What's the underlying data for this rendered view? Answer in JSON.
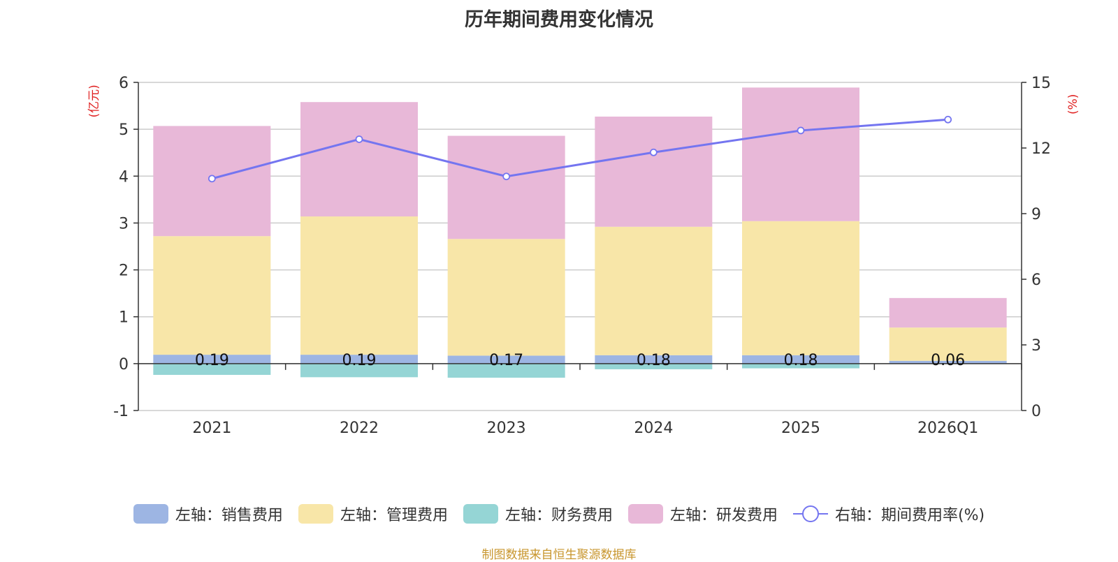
{
  "chart_data": {
    "type": "bar",
    "title": "历年期间费用变化情况",
    "categories": [
      "2021",
      "2022",
      "2023",
      "2024",
      "2025",
      "2026Q1"
    ],
    "left_axis": {
      "label": "(亿元)",
      "ylim": [
        -1,
        6
      ],
      "ticks": [
        -1,
        0,
        1,
        2,
        3,
        4,
        5,
        6
      ]
    },
    "right_axis": {
      "label": "(%)",
      "ylim": [
        0,
        15
      ],
      "ticks": [
        0,
        3,
        6,
        9,
        12,
        15
      ]
    },
    "series": [
      {
        "name": "左轴：销售费用",
        "axis": "left",
        "stack": "pos",
        "color": "#9db5e3",
        "values": [
          0.19,
          0.19,
          0.17,
          0.18,
          0.18,
          0.06
        ]
      },
      {
        "name": "左轴：管理费用",
        "axis": "left",
        "stack": "pos",
        "color": "#f8e6a8",
        "values": [
          2.53,
          2.95,
          2.49,
          2.74,
          2.86,
          0.71
        ]
      },
      {
        "name": "左轴：财务费用",
        "axis": "left",
        "stack": "neg",
        "color": "#95d5d5",
        "values": [
          -0.24,
          -0.29,
          -0.3,
          -0.12,
          -0.1,
          -0.01
        ]
      },
      {
        "name": "左轴：研发费用",
        "axis": "left",
        "stack": "pos",
        "color": "#e8b8d8",
        "values": [
          2.35,
          2.44,
          2.2,
          2.35,
          2.85,
          0.63
        ]
      },
      {
        "name": "右轴：期间费用率(%)",
        "axis": "right",
        "type": "line",
        "color": "#7475f0",
        "values": [
          10.6,
          12.4,
          10.7,
          11.8,
          12.8,
          13.3
        ]
      }
    ],
    "data_labels": [
      "0.19",
      "0.19",
      "0.17",
      "0.18",
      "0.18",
      "0.06"
    ],
    "grid": true
  },
  "footer": "制图数据来自恒生聚源数据库"
}
